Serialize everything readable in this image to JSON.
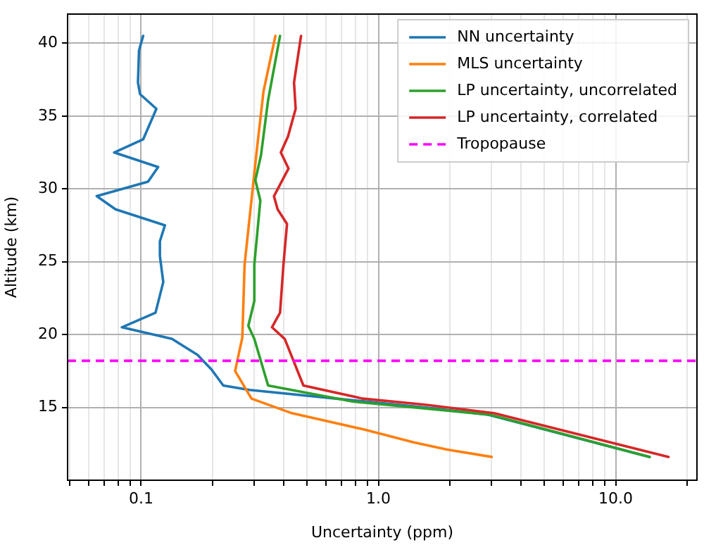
{
  "chart_data": {
    "type": "line",
    "xlabel": "Uncertainty (ppm)",
    "ylabel": "Altitude (km)",
    "log": "x",
    "grid": true,
    "legend": "top right",
    "line_style": "solid",
    "marker": "none",
    "xlim": [
      0.049,
      22
    ],
    "ylim": [
      10,
      42
    ],
    "xticks": [
      {
        "value": 0.05,
        "label": null
      },
      {
        "value": 0.06,
        "label": null
      },
      {
        "value": 0.07,
        "label": null
      },
      {
        "value": 0.08,
        "label": null
      },
      {
        "value": 0.09,
        "label": null
      },
      0.1,
      {
        "value": 0.2,
        "label": null
      },
      {
        "value": 0.3,
        "label": null
      },
      {
        "value": 0.4,
        "label": null
      },
      {
        "value": 0.5,
        "label": null
      },
      {
        "value": 0.6,
        "label": null
      },
      {
        "value": 0.7,
        "label": null
      },
      {
        "value": 0.8,
        "label": null
      },
      {
        "value": 0.9,
        "label": null
      },
      {
        "value": 1,
        "label": "1.0"
      },
      {
        "value": 2,
        "label": null
      },
      {
        "value": 3,
        "label": null
      },
      {
        "value": 4,
        "label": null
      },
      {
        "value": 5,
        "label": null
      },
      {
        "value": 6,
        "label": null
      },
      {
        "value": 7,
        "label": null
      },
      {
        "value": 8,
        "label": null
      },
      {
        "value": 9,
        "label": null
      },
      {
        "value": 10,
        "label": "10.0"
      },
      {
        "value": 20,
        "label": null
      }
    ],
    "yticks": [
      15,
      20,
      25,
      30,
      35,
      40
    ],
    "series": [
      {
        "name": "NN uncertainty",
        "color": "#1f77b4",
        "x": [
          0.102,
          0.098,
          0.097,
          0.099,
          0.116,
          0.102,
          0.077,
          0.118,
          0.107,
          0.065,
          0.078,
          0.126,
          0.12,
          0.12,
          0.124,
          0.115,
          0.083,
          0.135,
          0.173,
          0.198,
          0.222,
          0.286,
          1.55,
          2.9,
          13.9
        ],
        "values": [
          40.5,
          39.5,
          37.3,
          36.5,
          35.5,
          33.4,
          32.5,
          31.5,
          30.5,
          29.5,
          28.6,
          27.5,
          26.4,
          25.4,
          23.6,
          21.5,
          20.5,
          19.7,
          18.6,
          17.6,
          16.5,
          16.2,
          15.0,
          14.5,
          11.6
        ]
      },
      {
        "name": "MLS uncertainty",
        "color": "#ff7f0e",
        "x": [
          0.368,
          0.328,
          0.307,
          0.293,
          0.273,
          0.267,
          0.249,
          0.292,
          0.432,
          0.86,
          1.41,
          1.95,
          3.0
        ],
        "values": [
          40.5,
          36.7,
          32.6,
          29.5,
          24.8,
          19.8,
          17.5,
          15.6,
          14.6,
          13.5,
          12.6,
          12.1,
          11.6
        ]
      },
      {
        "name": "LP uncertainty, uncorrelated",
        "color": "#2ca02c",
        "x": [
          0.385,
          0.343,
          0.32,
          0.303,
          0.318,
          0.3,
          0.3,
          0.283,
          0.3,
          0.343,
          0.78,
          2.95,
          13.9
        ],
        "values": [
          40.5,
          36.1,
          32.3,
          30.6,
          29.2,
          24.8,
          22.3,
          20.6,
          19.7,
          16.5,
          15.4,
          14.5,
          11.6
        ]
      },
      {
        "name": "LP uncertainty, correlated",
        "color": "#d62728",
        "x": [
          0.472,
          0.441,
          0.448,
          0.416,
          0.388,
          0.418,
          0.363,
          0.376,
          0.412,
          0.398,
          0.385,
          0.356,
          0.403,
          0.483,
          0.86,
          1.55,
          3.07,
          16.7
        ],
        "values": [
          40.5,
          37.3,
          35.5,
          33.6,
          32.5,
          31.4,
          29.5,
          28.6,
          27.6,
          24.8,
          21.5,
          20.5,
          19.7,
          16.5,
          15.6,
          15.2,
          14.6,
          11.6
        ]
      }
    ],
    "ref_lines": [
      {
        "axis": "y",
        "value": 18.2,
        "label": "Tropopause",
        "color": "#ff00ff",
        "line_style": "dashed"
      }
    ]
  }
}
